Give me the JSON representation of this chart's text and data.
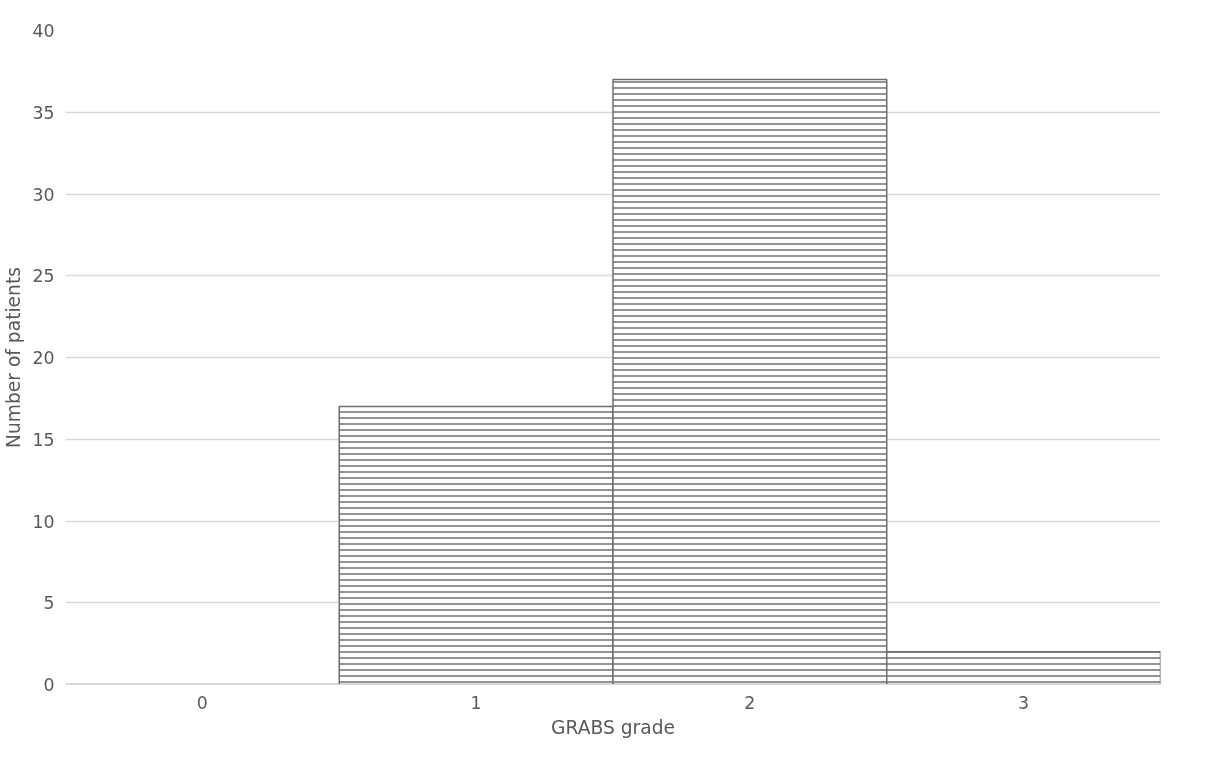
{
  "chart_data": {
    "type": "bar",
    "xlabel": "GRABS grade",
    "ylabel": "Number of patients",
    "categories": [
      "0",
      "1",
      "2",
      "3"
    ],
    "values": [
      0,
      17,
      37,
      2
    ],
    "color": "#6e6e6e",
    "ylim": [
      0,
      40
    ],
    "yticks": [
      0,
      5,
      10,
      15,
      20,
      25,
      30,
      35,
      40
    ],
    "grid": "y"
  }
}
